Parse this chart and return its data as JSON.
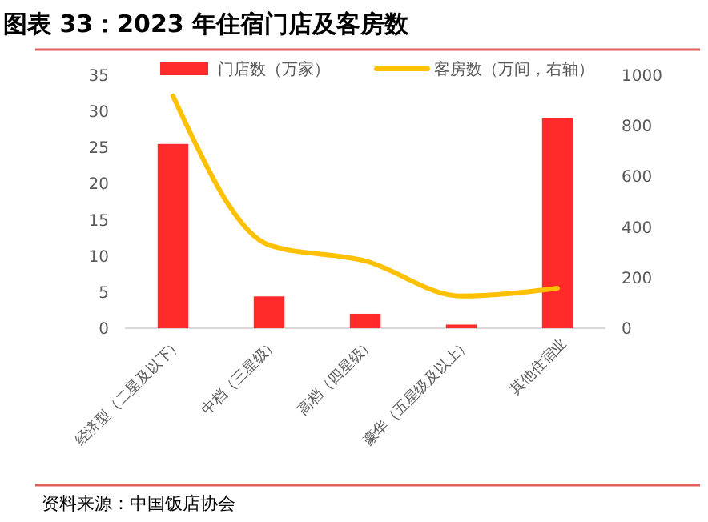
{
  "chart_data": {
    "type": "bar",
    "title": "图表 33：2023 年住宿门店及客房数",
    "categories": [
      "经济型（二星及以下）",
      "中档（三星级）",
      "高档（四星级）",
      "豪华（五星级及以上）",
      "其他住宿业"
    ],
    "series": [
      {
        "name": "门店数（万家）",
        "color": "#ff2a2a",
        "values": [
          25.5,
          4.4,
          2.0,
          0.5,
          29.1
        ]
      },
      {
        "name": "客房数（万间，右轴）",
        "type": "line",
        "axis": "y2",
        "color": "#ffc000",
        "values": [
          918,
          329,
          266,
          127,
          158
        ]
      }
    ],
    "ylim": [
      0,
      35
    ],
    "yticks": [
      0,
      5,
      10,
      15,
      20,
      25,
      30,
      35
    ],
    "y2lim": [
      0,
      1000
    ],
    "y2ticks": [
      0,
      200,
      400,
      600,
      800,
      1000
    ],
    "legend": "top",
    "grid": false,
    "marker": "none",
    "line_style": "solid",
    "annotations": [
      "资料来源：中国饭店协会"
    ]
  }
}
